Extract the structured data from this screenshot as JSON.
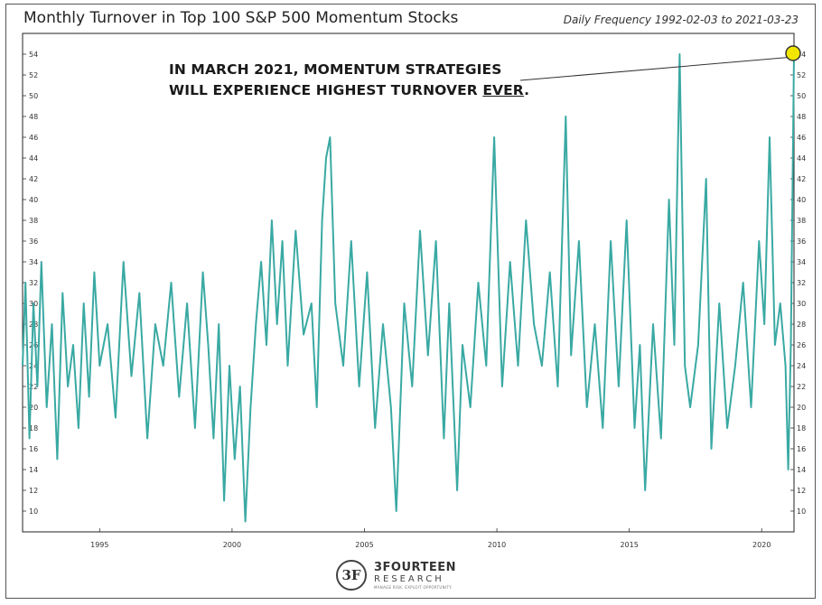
{
  "chart_data": {
    "type": "line",
    "title": "Monthly Turnover in Top 100 S&P 500 Momentum Stocks",
    "subtitle": "Daily Frequency 1992-02-03 to 2021-03-23",
    "xlabel": "",
    "ylabel": "",
    "xlim": [
      1992.09,
      2021.22
    ],
    "ylim": [
      8,
      56
    ],
    "x_ticks": [
      1995,
      2000,
      2005,
      2010,
      2015,
      2020
    ],
    "x_tick_labels": [
      "1995",
      "2000",
      "2005",
      "2010",
      "2015",
      "2020"
    ],
    "y_ticks": [
      10,
      12,
      14,
      16,
      18,
      20,
      22,
      24,
      26,
      28,
      30,
      32,
      34,
      36,
      38,
      40,
      42,
      44,
      46,
      48,
      50,
      52,
      54
    ],
    "y_tick_labels": [
      "10",
      "12",
      "14",
      "16",
      "18",
      "20",
      "22",
      "24",
      "26",
      "28",
      "30",
      "32",
      "34",
      "36",
      "38",
      "40",
      "42",
      "44",
      "46",
      "48",
      "50",
      "52",
      "54"
    ],
    "grid": false,
    "color": "#3aa9a3",
    "series": [
      {
        "x": [
          1992.09,
          1992.2,
          1992.35,
          1992.5,
          1992.65,
          1992.8,
          1993.0,
          1993.2,
          1993.4,
          1993.6,
          1993.8,
          1994.0,
          1994.2,
          1994.4,
          1994.6,
          1994.8,
          1995.0,
          1995.3,
          1995.6,
          1995.9,
          1996.2,
          1996.5,
          1996.8,
          1997.1,
          1997.4,
          1997.7,
          1998.0,
          1998.3,
          1998.6,
          1998.9,
          1999.1,
          1999.3,
          1999.5,
          1999.7,
          1999.9,
          2000.1,
          2000.3,
          2000.5,
          2000.7,
          2000.9,
          2001.1,
          2001.3,
          2001.5,
          2001.7,
          2001.9,
          2002.1,
          2002.4,
          2002.7,
          2003.0,
          2003.2,
          2003.4,
          2003.55,
          2003.7,
          2003.9,
          2004.2,
          2004.5,
          2004.8,
          2005.1,
          2005.4,
          2005.7,
          2006.0,
          2006.2,
          2006.5,
          2006.8,
          2007.1,
          2007.4,
          2007.7,
          2008.0,
          2008.2,
          2008.5,
          2008.7,
          2009.0,
          2009.3,
          2009.6,
          2009.9,
          2010.2,
          2010.5,
          2010.8,
          2011.1,
          2011.4,
          2011.7,
          2012.0,
          2012.3,
          2012.6,
          2012.8,
          2013.1,
          2013.4,
          2013.7,
          2014.0,
          2014.3,
          2014.6,
          2014.9,
          2015.2,
          2015.4,
          2015.6,
          2015.9,
          2016.2,
          2016.5,
          2016.7,
          2016.9,
          2017.1,
          2017.3,
          2017.6,
          2017.9,
          2018.1,
          2018.4,
          2018.7,
          2019.0,
          2019.3,
          2019.6,
          2019.9,
          2020.1,
          2020.3,
          2020.5,
          2020.7,
          2020.9,
          2021.0,
          2021.1,
          2021.22
        ],
        "y": [
          24,
          32,
          17,
          30,
          22,
          34,
          20,
          28,
          15,
          31,
          22,
          26,
          18,
          30,
          21,
          33,
          24,
          28,
          19,
          34,
          23,
          31,
          17,
          28,
          24,
          32,
          21,
          30,
          18,
          33,
          26,
          17,
          28,
          11,
          24,
          15,
          22,
          9,
          20,
          28,
          34,
          26,
          38,
          28,
          36,
          24,
          37,
          27,
          30,
          20,
          38,
          44,
          46,
          30,
          24,
          36,
          22,
          33,
          18,
          28,
          20,
          10,
          30,
          22,
          37,
          25,
          36,
          17,
          30,
          12,
          26,
          20,
          32,
          24,
          46,
          22,
          34,
          24,
          38,
          28,
          24,
          33,
          22,
          48,
          25,
          36,
          20,
          28,
          18,
          36,
          22,
          38,
          18,
          26,
          12,
          28,
          17,
          40,
          26,
          54,
          24,
          20,
          26,
          42,
          16,
          30,
          18,
          24,
          32,
          20,
          36,
          28,
          46,
          26,
          30,
          24,
          14,
          26,
          54
        ]
      }
    ],
    "annotation": {
      "line1": "IN MARCH 2021, MOMENTUM STRATEGIES",
      "line2_prefix": "WILL EXPERIENCE HIGHEST TURNOVER ",
      "line2_emphasis": "EVER",
      "line2_suffix": "."
    },
    "marker_color": "#f2e600"
  },
  "branding": {
    "logo_mark": "3F",
    "name": "3FOURTEEN",
    "sub": "RESEARCH",
    "tagline": "MANAGE RISK. EXPLOIT OPPORTUNITY."
  }
}
